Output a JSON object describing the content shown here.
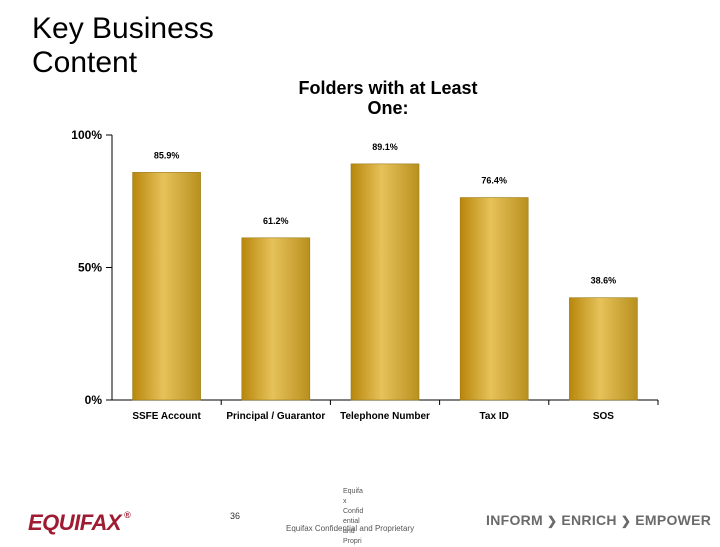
{
  "slide": {
    "title_line1": "Key Business",
    "title_line2": "Content",
    "chart_title_line1": "Folders with at Least",
    "chart_title_line2": "One:"
  },
  "chart_data": {
    "type": "bar",
    "categories": [
      "SSFE Account",
      "Principal / Guarantor",
      "Telephone Number",
      "Tax ID",
      "SOS"
    ],
    "values": [
      85.9,
      61.2,
      89.1,
      76.4,
      38.6
    ],
    "value_labels": [
      "85.9%",
      "61.2%",
      "89.1%",
      "76.4%",
      "38.6%"
    ],
    "ylim": [
      0,
      100
    ],
    "yticks": [
      0,
      50,
      100
    ],
    "ytick_labels": [
      "0%",
      "50%",
      "100%"
    ],
    "bar_color": "#c9a227",
    "grid": false,
    "legend": "none"
  },
  "footer": {
    "logo_text": "EQUIFAX",
    "logo_mark": "®",
    "page_number": "36",
    "confidential_stack": [
      "Equifa",
      "x",
      "Confid",
      "ential",
      "and",
      "Propri"
    ],
    "confidential_line": "Equifax Confidential and Proprietary",
    "tagline": [
      "INFORM",
      "ENRICH",
      "EMPOWER"
    ],
    "tagline_separator": "❯",
    "brand_color": "#9e1b32"
  }
}
